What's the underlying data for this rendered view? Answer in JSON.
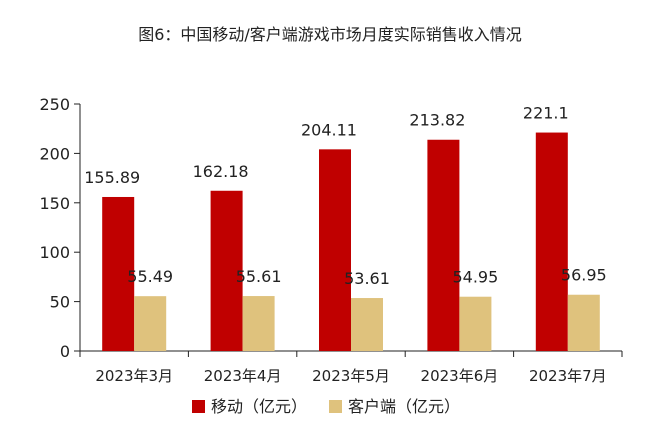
{
  "chart_data": {
    "type": "bar",
    "title": "图6：中国移动/客户端游戏市场月度实际销售收入情况",
    "categories": [
      "2023年3月",
      "2023年4月",
      "2023年5月",
      "2023年6月",
      "2023年7月"
    ],
    "series": [
      {
        "name": "移动（亿元）",
        "color": "#c00000",
        "values": [
          155.89,
          162.18,
          204.11,
          213.82,
          221.1
        ]
      },
      {
        "name": "客户端（亿元）",
        "color": "#dfc27d",
        "values": [
          55.49,
          55.61,
          53.61,
          54.95,
          56.95
        ]
      }
    ],
    "yticks": [
      0,
      50,
      100,
      150,
      200,
      250
    ],
    "ylim": [
      0,
      250
    ],
    "xlabel": "",
    "ylabel": "",
    "grid": false,
    "legend_position": "bottom"
  }
}
